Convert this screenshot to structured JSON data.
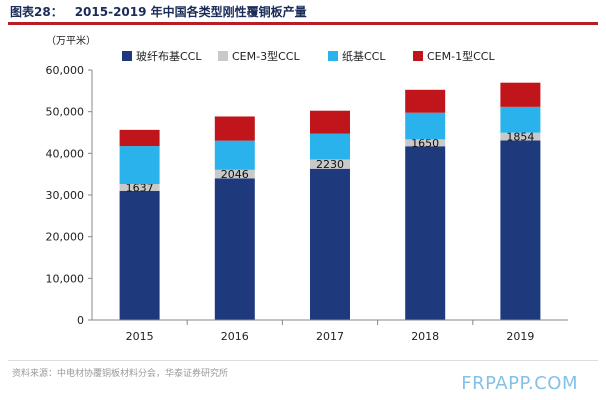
{
  "figure": {
    "label": "图表28：",
    "title": "2015-2019 年中国各类型刚性覆铜板产量",
    "unit": "（万平米）",
    "source": "资料来源：中电材协覆铜板材料分会，华泰证券研究所",
    "watermark": "FRPAPP.COM"
  },
  "chart_data": {
    "type": "bar",
    "stacked": true,
    "categories": [
      "2015",
      "2016",
      "2017",
      "2018",
      "2019"
    ],
    "series": [
      {
        "name": "玻纤布基CCL",
        "color": "#1f3a7c",
        "values": [
          31000,
          34000,
          36300,
          41700,
          43100
        ]
      },
      {
        "name": "CEM-3型CCL",
        "color": "#c9c9c9",
        "values": [
          1637,
          2046,
          2230,
          1650,
          1854
        ]
      },
      {
        "name": "纸基CCL",
        "color": "#2ab2ec",
        "values": [
          9100,
          7000,
          6200,
          6400,
          6200
        ]
      },
      {
        "name": "CEM-1型CCL",
        "color": "#c0151b",
        "values": [
          3900,
          5800,
          5500,
          5500,
          5800
        ]
      }
    ],
    "data_labels": {
      "series_index": 1,
      "values": [
        "1637",
        "2046",
        "2230",
        "1650",
        "1854"
      ]
    },
    "y_ticks": [
      "0",
      "10,000",
      "20,000",
      "30,000",
      "40,000",
      "50,000",
      "60,000"
    ],
    "ylim": [
      0,
      60000
    ],
    "legend": "top",
    "grid": false
  }
}
